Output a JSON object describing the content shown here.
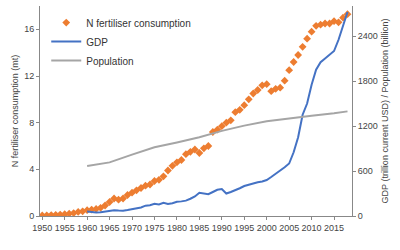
{
  "chart_data": {
    "type": "line",
    "xlabel": null,
    "ylabel": "N fertiliser consumption (mt)",
    "y2label": "GDP (trillion current USD) / Population (billion)",
    "xlim": [
      1949.5,
      2019
    ],
    "xticks": [
      1950,
      1955,
      1960,
      1965,
      1970,
      1975,
      1980,
      1985,
      1990,
      1995,
      2000,
      2005,
      2010,
      2015
    ],
    "ylim": [
      0,
      18
    ],
    "yticks": [
      0,
      4,
      8,
      12,
      16
    ],
    "y2lim": [
      0,
      2800
    ],
    "y2ticks": [
      0,
      600,
      1200,
      1800,
      2400
    ],
    "grid": false,
    "legend": "upper left",
    "series": [
      {
        "name": "N fertiliser consumption",
        "color": "#ED7D31",
        "type": "scatter",
        "marker": "diamond",
        "x": [
          1950,
          1951,
          1952,
          1953,
          1954,
          1955,
          1956,
          1957,
          1958,
          1959,
          1960,
          1961,
          1962,
          1963,
          1964,
          1965,
          1966,
          1967,
          1968,
          1969,
          1970,
          1971,
          1972,
          1973,
          1974,
          1975,
          1976,
          1977,
          1978,
          1979,
          1980,
          1981,
          1982,
          1983,
          1984,
          1985,
          1986,
          1987,
          1988,
          1989,
          1990,
          1991,
          1992,
          1993,
          1994,
          1995,
          1996,
          1997,
          1998,
          1999,
          2000,
          2001,
          2002,
          2003,
          2004,
          2005,
          2006,
          2007,
          2008,
          2009,
          2010,
          2011,
          2012,
          2013,
          2014,
          2015,
          2016,
          2017,
          2018
        ],
        "values": [
          0.05,
          0.06,
          0.08,
          0.1,
          0.12,
          0.15,
          0.2,
          0.25,
          0.35,
          0.4,
          0.5,
          0.55,
          0.6,
          0.7,
          0.9,
          1.2,
          1.5,
          1.4,
          1.5,
          1.8,
          2.0,
          2.2,
          2.4,
          2.6,
          2.7,
          3.0,
          3.1,
          3.4,
          3.9,
          4.3,
          4.6,
          4.8,
          5.3,
          5.5,
          5.7,
          5.4,
          5.8,
          6.0,
          7.2,
          7.4,
          7.7,
          8.0,
          8.2,
          8.9,
          9.1,
          9.5,
          10.0,
          10.5,
          10.8,
          11.2,
          11.3,
          10.7,
          10.9,
          11.0,
          11.6,
          12.5,
          13.2,
          13.8,
          14.5,
          15.2,
          15.8,
          16.3,
          16.4,
          16.5,
          16.5,
          16.7,
          16.6,
          17.0,
          17.3
        ]
      },
      {
        "name": "GDP",
        "color": "#4472C4",
        "type": "line",
        "line_style": "solid",
        "axis": "y2",
        "x": [
          1960,
          1961,
          1962,
          1963,
          1964,
          1965,
          1966,
          1967,
          1968,
          1969,
          1970,
          1971,
          1972,
          1973,
          1974,
          1975,
          1976,
          1977,
          1978,
          1979,
          1980,
          1981,
          1982,
          1983,
          1984,
          1985,
          1986,
          1987,
          1988,
          1989,
          1990,
          1991,
          1992,
          1993,
          1994,
          1995,
          1996,
          1997,
          1998,
          1999,
          2000,
          2001,
          2002,
          2003,
          2004,
          2005,
          2006,
          2007,
          2008,
          2009,
          2010,
          2011,
          2012,
          2013,
          2014,
          2015,
          2016,
          2017,
          2018
        ],
        "values": [
          60,
          50,
          48,
          50,
          60,
          70,
          76,
          72,
          71,
          80,
          92,
          100,
          114,
          138,
          144,
          163,
          154,
          175,
          160,
          170,
          190,
          195,
          205,
          230,
          260,
          310,
          300,
          290,
          320,
          350,
          360,
          300,
          320,
          340,
          370,
          400,
          420,
          440,
          450,
          460,
          480,
          520,
          560,
          600,
          650,
          700,
          850,
          1050,
          1350,
          1500,
          1750,
          1950,
          2050,
          2100,
          2150,
          2200,
          2350,
          2550,
          2720
        ]
      },
      {
        "name": "Population",
        "color": "#A5A5A5",
        "type": "line",
        "line_style": "solid",
        "axis": "y2",
        "x": [
          1960,
          1965,
          1970,
          1975,
          1980,
          1985,
          1990,
          1995,
          2000,
          2005,
          2010,
          2015,
          2018
        ],
        "values": [
          667,
          715,
          818,
          916,
          981,
          1051,
          1135,
          1205,
          1263,
          1304,
          1338,
          1371,
          1395
        ]
      }
    ]
  }
}
